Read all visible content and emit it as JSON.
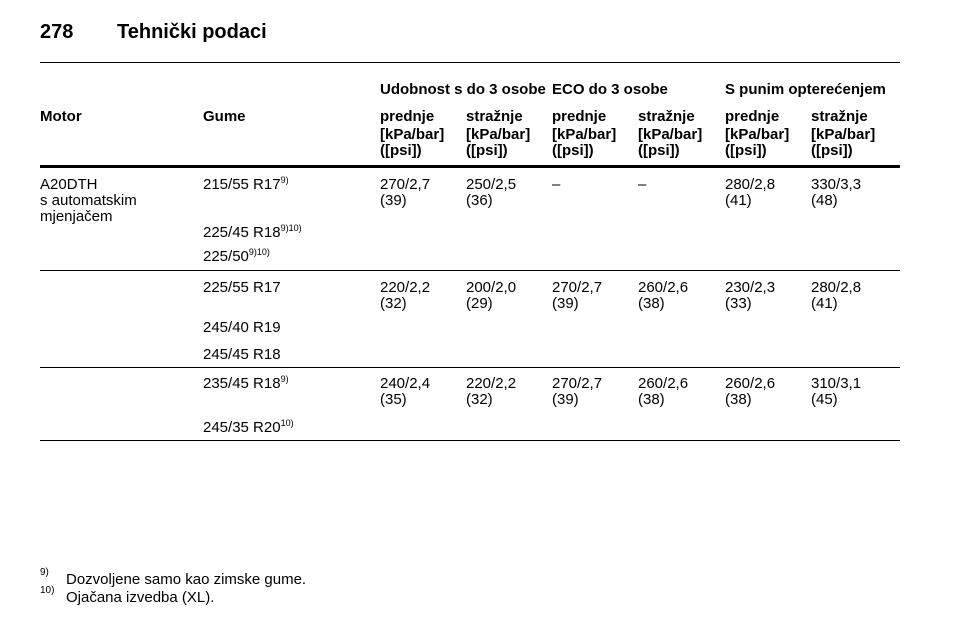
{
  "header": {
    "page": "278",
    "title": "Tehnički podaci"
  },
  "table": {
    "group_headers": [
      "Udobnost s do 3 osobe",
      "ECO do 3 osobe",
      "S punim opterećenjem"
    ],
    "columns": [
      "Motor",
      "Gume",
      "prednje",
      "stražnje",
      "prednje",
      "stražnje",
      "prednje",
      "stražnje"
    ],
    "units": [
      [
        "[kPa/bar]",
        "([psi])"
      ],
      [
        "[kPa/bar]",
        "([psi])"
      ],
      [
        "[kPa/bar]",
        "([psi])"
      ],
      [
        "[kPa/bar]",
        "([psi])"
      ],
      [
        "[kPa/bar]",
        "([psi])"
      ],
      [
        "[kPa/bar]",
        "([psi])"
      ]
    ],
    "motor": [
      "A20DTH",
      "s automatskim",
      "mjenjačem"
    ],
    "groups": [
      {
        "tires": [
          {
            "name": "215/55 R17",
            "note": "9)"
          },
          {
            "name": "225/45 R18",
            "note": "9)10)"
          },
          {
            "name": "225/50",
            "note": "9)10)"
          }
        ],
        "values": [
          [
            "270/2,7",
            "(39)"
          ],
          [
            "250/2,5",
            "(36)"
          ],
          [
            "–"
          ],
          [
            "–"
          ],
          [
            "280/2,8",
            "(41)"
          ],
          [
            "330/3,3",
            "(48)"
          ]
        ]
      },
      {
        "tires": [
          {
            "name": "225/55 R17"
          },
          {
            "name": "245/40 R19"
          },
          {
            "name": "245/45 R18"
          }
        ],
        "values": [
          [
            "220/2,2",
            "(32)"
          ],
          [
            "200/2,0",
            "(29)"
          ],
          [
            "270/2,7",
            "(39)"
          ],
          [
            "260/2,6",
            "(38)"
          ],
          [
            "230/2,3",
            "(33)"
          ],
          [
            "280/2,8",
            "(41)"
          ]
        ]
      },
      {
        "tires": [
          {
            "name": "235/45 R18",
            "note": "9)"
          },
          {
            "name": "245/35 R20",
            "note": "10)"
          }
        ],
        "values": [
          [
            "240/2,4",
            "(35)"
          ],
          [
            "220/2,2",
            "(32)"
          ],
          [
            "270/2,7",
            "(39)"
          ],
          [
            "260/2,6",
            "(38)"
          ],
          [
            "260/2,6",
            "(38)"
          ],
          [
            "310/3,1",
            "(45)"
          ]
        ]
      }
    ]
  },
  "footnotes": [
    {
      "mark": "9)",
      "text": "Dozvoljene samo kao zimske gume."
    },
    {
      "mark": "10)",
      "text": "Ojačana izvedba (XL)."
    }
  ]
}
